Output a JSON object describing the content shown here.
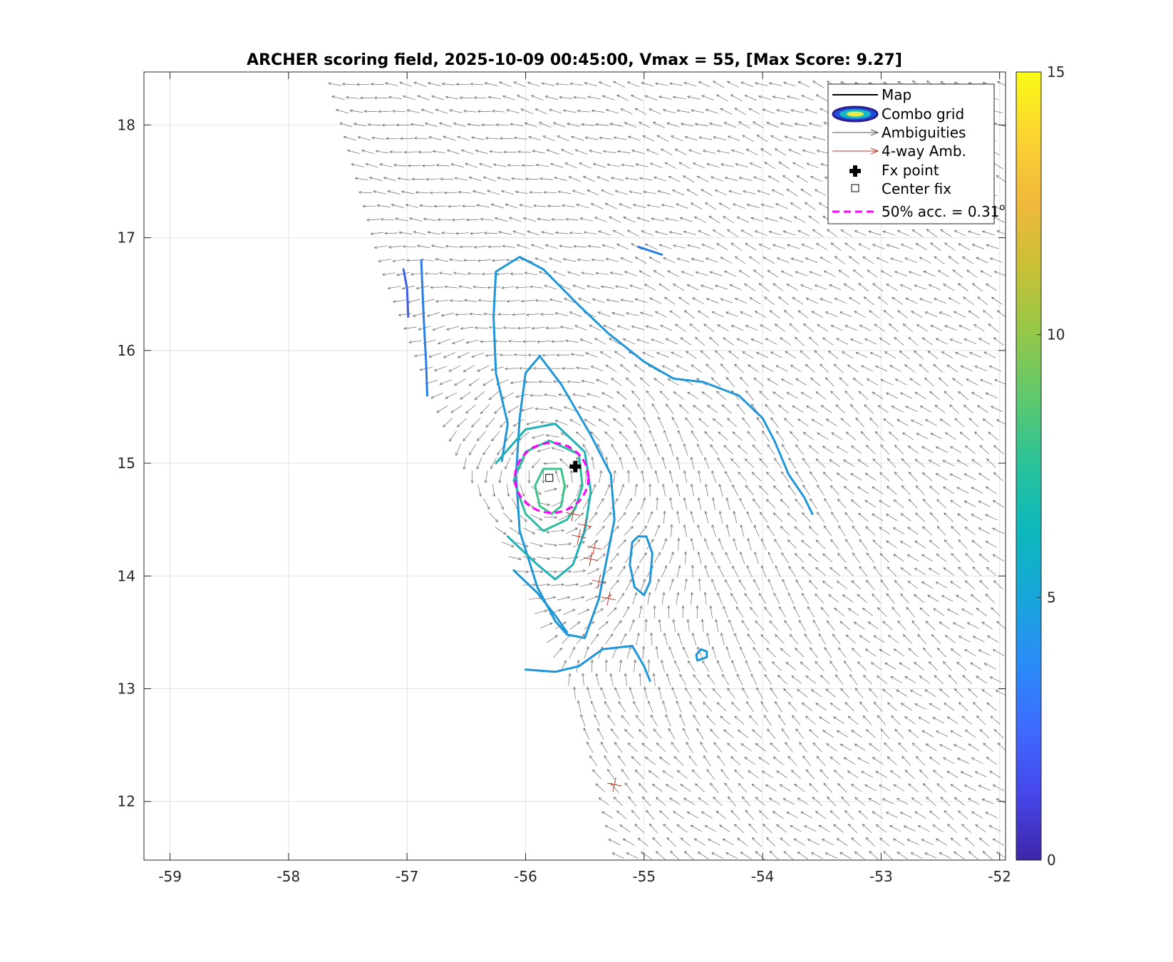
{
  "chart_data": {
    "type": "contour+quiver",
    "title": "ARCHER scoring field, 2025-10-09 00:45:00, Vmax = 55, [Max Score: 9.27]",
    "xlabel": "",
    "ylabel": "",
    "xlim": [
      -59.22,
      -51.95
    ],
    "ylim": [
      11.48,
      18.47
    ],
    "x_ticks": [
      -59,
      -58,
      -57,
      -56,
      -55,
      -54,
      -53,
      -52
    ],
    "x_tick_labels": [
      "-59",
      "-58",
      "-57",
      "-56",
      "-55",
      "-54",
      "-53",
      "-52"
    ],
    "y_ticks": [
      12,
      13,
      14,
      15,
      16,
      17,
      18
    ],
    "y_tick_labels": [
      "12",
      "13",
      "14",
      "15",
      "16",
      "17",
      "18"
    ],
    "grid": true,
    "legend_position": "top-right",
    "legend": [
      {
        "key": "map",
        "label": "Map"
      },
      {
        "key": "combo",
        "label": "Combo grid"
      },
      {
        "key": "amb",
        "label": "Ambiguities"
      },
      {
        "key": "amb4",
        "label": "4-way Amb."
      },
      {
        "key": "fx",
        "label": "Fx point"
      },
      {
        "key": "center",
        "label": "Center fix"
      },
      {
        "key": "acc",
        "label": "50% acc. = 0.31",
        "superscript": "o"
      }
    ],
    "colorbar": {
      "min": 0,
      "max": 15,
      "ticks": [
        0,
        5,
        10,
        15
      ],
      "tick_labels": [
        "0",
        "5",
        "10",
        "15"
      ],
      "colormap": [
        "#3e26a8",
        "#4746eb",
        "#3e6bff",
        "#2a8cf7",
        "#18a6d9",
        "#0cb8bd",
        "#29c29b",
        "#5cc86f",
        "#93c84a",
        "#c7c136",
        "#f0b83b",
        "#fcd332",
        "#f9fb15"
      ]
    },
    "fx_point": {
      "lon": -55.58,
      "lat": 14.97
    },
    "center_fix": {
      "lon": -55.8,
      "lat": 14.87
    },
    "acc_circle": {
      "lon": -55.78,
      "lat": 14.87,
      "radius_deg": 0.31
    },
    "swath": {
      "west_edge": [
        [
          -57.65,
          18.35
        ],
        [
          -57.2,
          16.7
        ],
        [
          -56.6,
          15.1
        ],
        [
          -56.0,
          13.9
        ],
        [
          -55.6,
          12.9
        ],
        [
          -55.25,
          11.48
        ]
      ],
      "east_edge": [
        [
          -51.95,
          18.35
        ],
        [
          -51.95,
          11.48
        ]
      ]
    },
    "contours": [
      {
        "level": 4.0,
        "color": "#3f5fe8",
        "points": [
          [
            -57.03,
            16.72
          ],
          [
            -57.0,
            16.55
          ],
          [
            -56.99,
            16.3
          ]
        ]
      },
      {
        "level": 4.2,
        "color": "#2a7de3",
        "points": [
          [
            -56.88,
            16.8
          ],
          [
            -56.86,
            16.3
          ],
          [
            -56.84,
            15.9
          ],
          [
            -56.83,
            15.6
          ]
        ]
      },
      {
        "level": 4.2,
        "color": "#2a7de3",
        "points": [
          [
            -55.05,
            16.92
          ],
          [
            -54.85,
            16.85
          ]
        ]
      },
      {
        "level": 5.0,
        "color": "#1f96d8",
        "points": [
          [
            -56.2,
            15.02
          ],
          [
            -56.15,
            15.35
          ],
          [
            -56.25,
            15.8
          ],
          [
            -56.27,
            16.3
          ],
          [
            -56.25,
            16.7
          ],
          [
            -56.05,
            16.83
          ],
          [
            -55.85,
            16.72
          ],
          [
            -55.55,
            16.4
          ],
          [
            -55.3,
            16.15
          ],
          [
            -55.0,
            15.9
          ],
          [
            -54.75,
            15.75
          ],
          [
            -54.5,
            15.72
          ],
          [
            -54.2,
            15.6
          ],
          [
            -54.0,
            15.4
          ],
          [
            -53.9,
            15.2
          ],
          [
            -53.78,
            14.9
          ],
          [
            -53.65,
            14.7
          ],
          [
            -53.58,
            14.55
          ]
        ]
      },
      {
        "level": 5.0,
        "color": "#1f96d8",
        "points": [
          [
            -55.5,
            13.45
          ],
          [
            -55.38,
            13.8
          ],
          [
            -55.25,
            14.5
          ],
          [
            -55.28,
            14.9
          ],
          [
            -55.45,
            15.25
          ],
          [
            -55.7,
            15.7
          ],
          [
            -55.88,
            15.95
          ],
          [
            -56.0,
            15.8
          ],
          [
            -56.05,
            15.4
          ],
          [
            -56.08,
            14.9
          ],
          [
            -56.05,
            14.4
          ],
          [
            -55.9,
            13.9
          ],
          [
            -55.75,
            13.6
          ],
          [
            -55.65,
            13.48
          ],
          [
            -55.5,
            13.45
          ]
        ]
      },
      {
        "level": 5.0,
        "color": "#1f96d8",
        "points": [
          [
            -56.1,
            14.05
          ],
          [
            -55.9,
            13.85
          ],
          [
            -55.75,
            13.65
          ],
          [
            -55.65,
            13.5
          ]
        ]
      },
      {
        "level": 5.0,
        "color": "#1f96d8",
        "points": [
          [
            -55.05,
            14.35
          ],
          [
            -54.98,
            14.35
          ],
          [
            -54.93,
            14.2
          ],
          [
            -54.95,
            13.95
          ],
          [
            -55.0,
            13.83
          ],
          [
            -55.08,
            13.9
          ],
          [
            -55.12,
            14.1
          ],
          [
            -55.1,
            14.3
          ],
          [
            -55.05,
            14.35
          ]
        ]
      },
      {
        "level": 5.0,
        "color": "#1f96d8",
        "points": [
          [
            -56.0,
            13.17
          ],
          [
            -55.75,
            13.15
          ],
          [
            -55.55,
            13.2
          ],
          [
            -55.35,
            13.35
          ],
          [
            -55.1,
            13.38
          ],
          [
            -55.0,
            13.2
          ],
          [
            -54.95,
            13.07
          ]
        ]
      },
      {
        "level": 5.0,
        "color": "#1f96d8",
        "points": [
          [
            -54.55,
            13.25
          ],
          [
            -54.47,
            13.28
          ],
          [
            -54.47,
            13.33
          ],
          [
            -54.52,
            13.35
          ],
          [
            -54.56,
            13.3
          ],
          [
            -54.55,
            13.25
          ]
        ]
      },
      {
        "level": 6.5,
        "color": "#1fb0b6",
        "points": [
          [
            -56.25,
            15.0
          ],
          [
            -56.0,
            15.3
          ],
          [
            -55.75,
            15.35
          ],
          [
            -55.5,
            15.1
          ],
          [
            -55.45,
            14.75
          ],
          [
            -55.5,
            14.4
          ],
          [
            -55.6,
            14.1
          ],
          [
            -55.75,
            13.97
          ],
          [
            -55.9,
            14.1
          ],
          [
            -56.15,
            14.35
          ]
        ]
      },
      {
        "level": 7.5,
        "color": "#27be9e",
        "points": [
          [
            -55.65,
            14.5
          ],
          [
            -55.85,
            14.4
          ],
          [
            -56.0,
            14.55
          ],
          [
            -56.1,
            14.85
          ],
          [
            -56.0,
            15.1
          ],
          [
            -55.8,
            15.2
          ],
          [
            -55.55,
            15.08
          ],
          [
            -55.52,
            14.8
          ],
          [
            -55.58,
            14.6
          ],
          [
            -55.65,
            14.5
          ]
        ]
      },
      {
        "level": 8.5,
        "color": "#3bc287",
        "points": [
          [
            -55.78,
            14.55
          ],
          [
            -55.88,
            14.62
          ],
          [
            -55.92,
            14.8
          ],
          [
            -55.85,
            14.95
          ],
          [
            -55.7,
            14.95
          ],
          [
            -55.67,
            14.8
          ],
          [
            -55.7,
            14.62
          ],
          [
            -55.78,
            14.55
          ]
        ]
      }
    ],
    "four_way_ambiguities": [
      [
        -55.6,
        14.55
      ],
      [
        -55.55,
        14.35
      ],
      [
        -55.45,
        14.15
      ],
      [
        -55.38,
        13.95
      ],
      [
        -55.3,
        13.8
      ],
      [
        -55.25,
        12.15
      ],
      [
        -55.5,
        14.45
      ],
      [
        -55.42,
        14.25
      ]
    ]
  }
}
